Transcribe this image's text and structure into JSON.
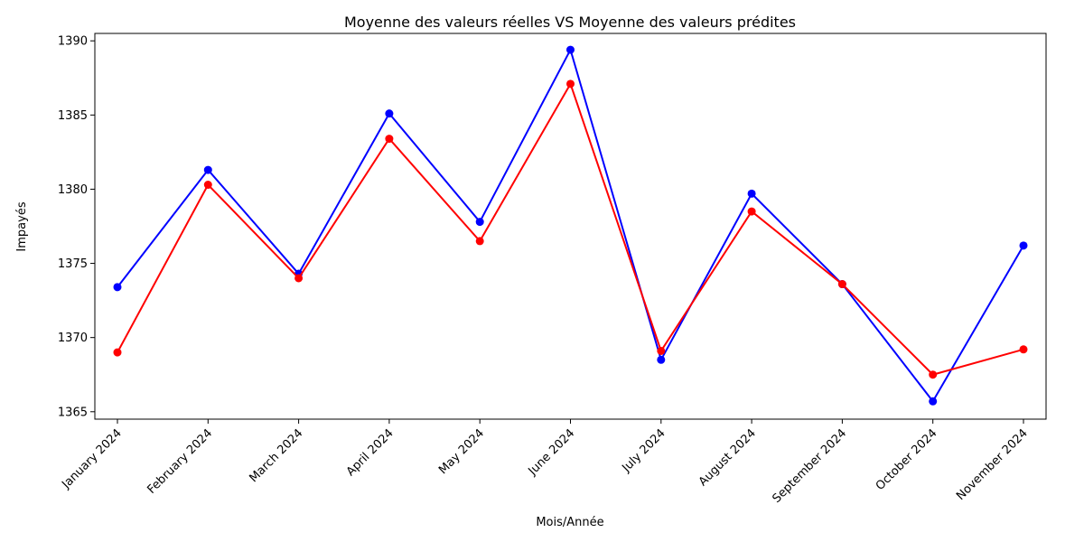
{
  "chart_data": {
    "type": "line",
    "title": "Moyenne des valeurs réelles VS Moyenne des valeurs prédites",
    "xlabel": "Mois/Année",
    "ylabel": "Impayés",
    "categories": [
      "January 2024",
      "February 2024",
      "March 2024",
      "April 2024",
      "May 2024",
      "June 2024",
      "July 2024",
      "August 2024",
      "September 2024",
      "October 2024",
      "November 2024"
    ],
    "yticks": [
      1365,
      1370,
      1375,
      1380,
      1385,
      1390
    ],
    "ylim": [
      1364.5,
      1390.5
    ],
    "grid": false,
    "legend": "none",
    "series": [
      {
        "color": "#0000ff",
        "marker": "circle",
        "values": [
          1373.4,
          1381.3,
          1374.3,
          1385.1,
          1377.8,
          1389.4,
          1368.5,
          1379.7,
          1373.6,
          1365.7,
          1376.2
        ]
      },
      {
        "color": "#ff0000",
        "marker": "circle",
        "values": [
          1369.0,
          1380.3,
          1374.0,
          1383.4,
          1376.5,
          1387.1,
          1369.1,
          1378.5,
          1373.6,
          1367.5,
          1369.2
        ]
      }
    ]
  }
}
